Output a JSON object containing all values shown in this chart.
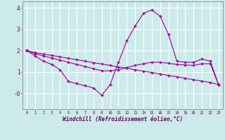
{
  "xlabel": "Windchill (Refroidissement éolien,°C)",
  "bg_color": "#cceaea",
  "grid_color": "#ffffff",
  "line_color": "#990099",
  "xlim": [
    -0.5,
    23.5
  ],
  "ylim": [
    -0.75,
    4.3
  ],
  "x_values": [
    0,
    1,
    2,
    3,
    4,
    5,
    6,
    7,
    8,
    9,
    10,
    11,
    12,
    13,
    14,
    15,
    16,
    17,
    18,
    19,
    20,
    21,
    22,
    23
  ],
  "line1_y": [
    2.0,
    1.75,
    1.5,
    1.35,
    1.1,
    0.55,
    0.45,
    0.35,
    0.25,
    -0.1,
    0.4,
    1.45,
    2.45,
    3.15,
    3.75,
    3.9,
    3.6,
    2.75,
    1.5,
    1.45,
    1.45,
    1.6,
    1.5,
    0.4
  ],
  "line2_y": [
    2.0,
    1.9,
    1.83,
    1.77,
    1.7,
    1.63,
    1.57,
    1.5,
    1.43,
    1.37,
    1.3,
    1.23,
    1.17,
    1.1,
    1.03,
    0.97,
    0.9,
    0.83,
    0.77,
    0.7,
    0.63,
    0.57,
    0.5,
    0.4
  ],
  "line3_y": [
    2.0,
    1.85,
    1.75,
    1.65,
    1.55,
    1.45,
    1.35,
    1.25,
    1.15,
    1.05,
    1.05,
    1.1,
    1.2,
    1.3,
    1.38,
    1.45,
    1.45,
    1.4,
    1.35,
    1.32,
    1.3,
    1.38,
    1.38,
    0.4
  ]
}
